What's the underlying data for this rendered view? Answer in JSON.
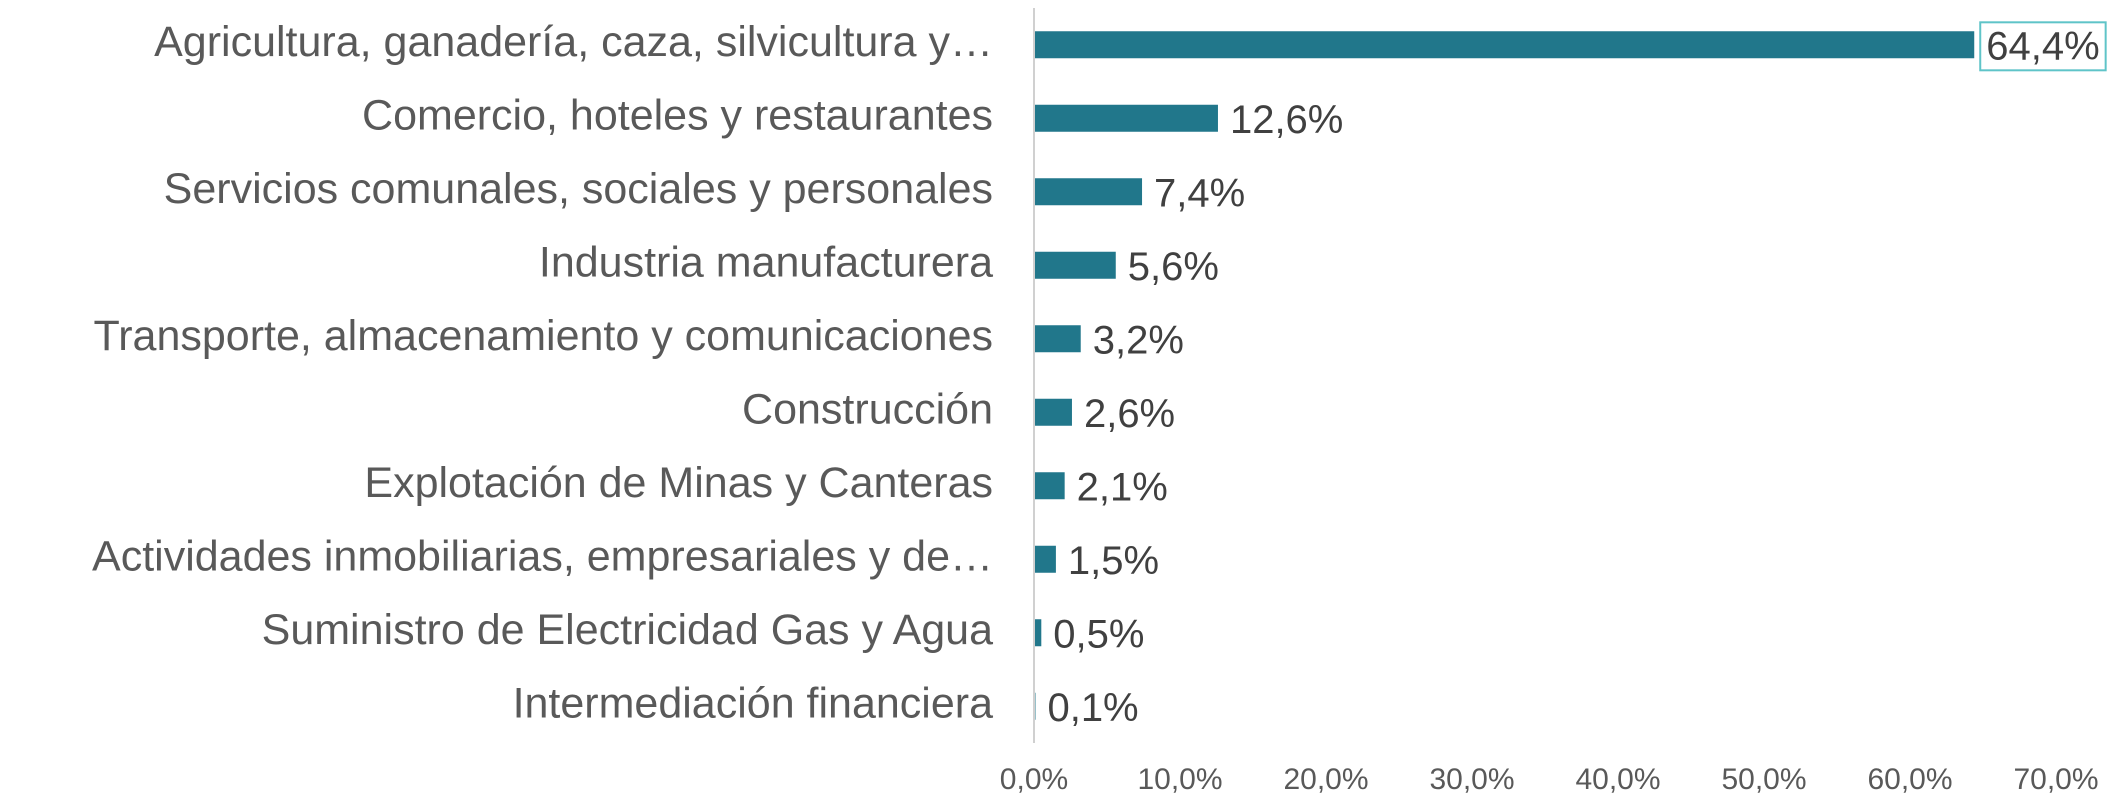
{
  "chart_data": {
    "type": "bar",
    "orientation": "horizontal",
    "categories": [
      "Agricultura, ganadería, caza, silvicultura y…",
      "Comercio, hoteles y restaurantes",
      "Servicios comunales, sociales y personales",
      "Industria manufacturera",
      "Transporte, almacenamiento y comunicaciones",
      "Construcción",
      "Explotación de Minas y Canteras",
      "Actividades inmobiliarias, empresariales y de…",
      "Suministro de Electricidad Gas y Agua",
      "Intermediación financiera"
    ],
    "values": [
      64.4,
      12.6,
      7.4,
      5.6,
      3.2,
      2.6,
      2.1,
      1.5,
      0.5,
      0.1
    ],
    "value_labels": [
      "64,4%",
      "12,6%",
      "7,4%",
      "5,6%",
      "3,2%",
      "2,6%",
      "2,1%",
      "1,5%",
      "0,5%",
      "0,1%"
    ],
    "color": "#21778b",
    "xlim": [
      0,
      70
    ],
    "xticks": [
      {
        "value": 0,
        "label": "0,0%"
      },
      {
        "value": 10,
        "label": "10,0%"
      },
      {
        "value": 20,
        "label": "20,0%"
      },
      {
        "value": 30,
        "label": "30,0%"
      },
      {
        "value": 40,
        "label": "40,0%"
      },
      {
        "value": 50,
        "label": "50,0%"
      },
      {
        "value": 60,
        "label": "60,0%"
      },
      {
        "value": 70,
        "label": "70,0%"
      }
    ],
    "grid": false
  }
}
